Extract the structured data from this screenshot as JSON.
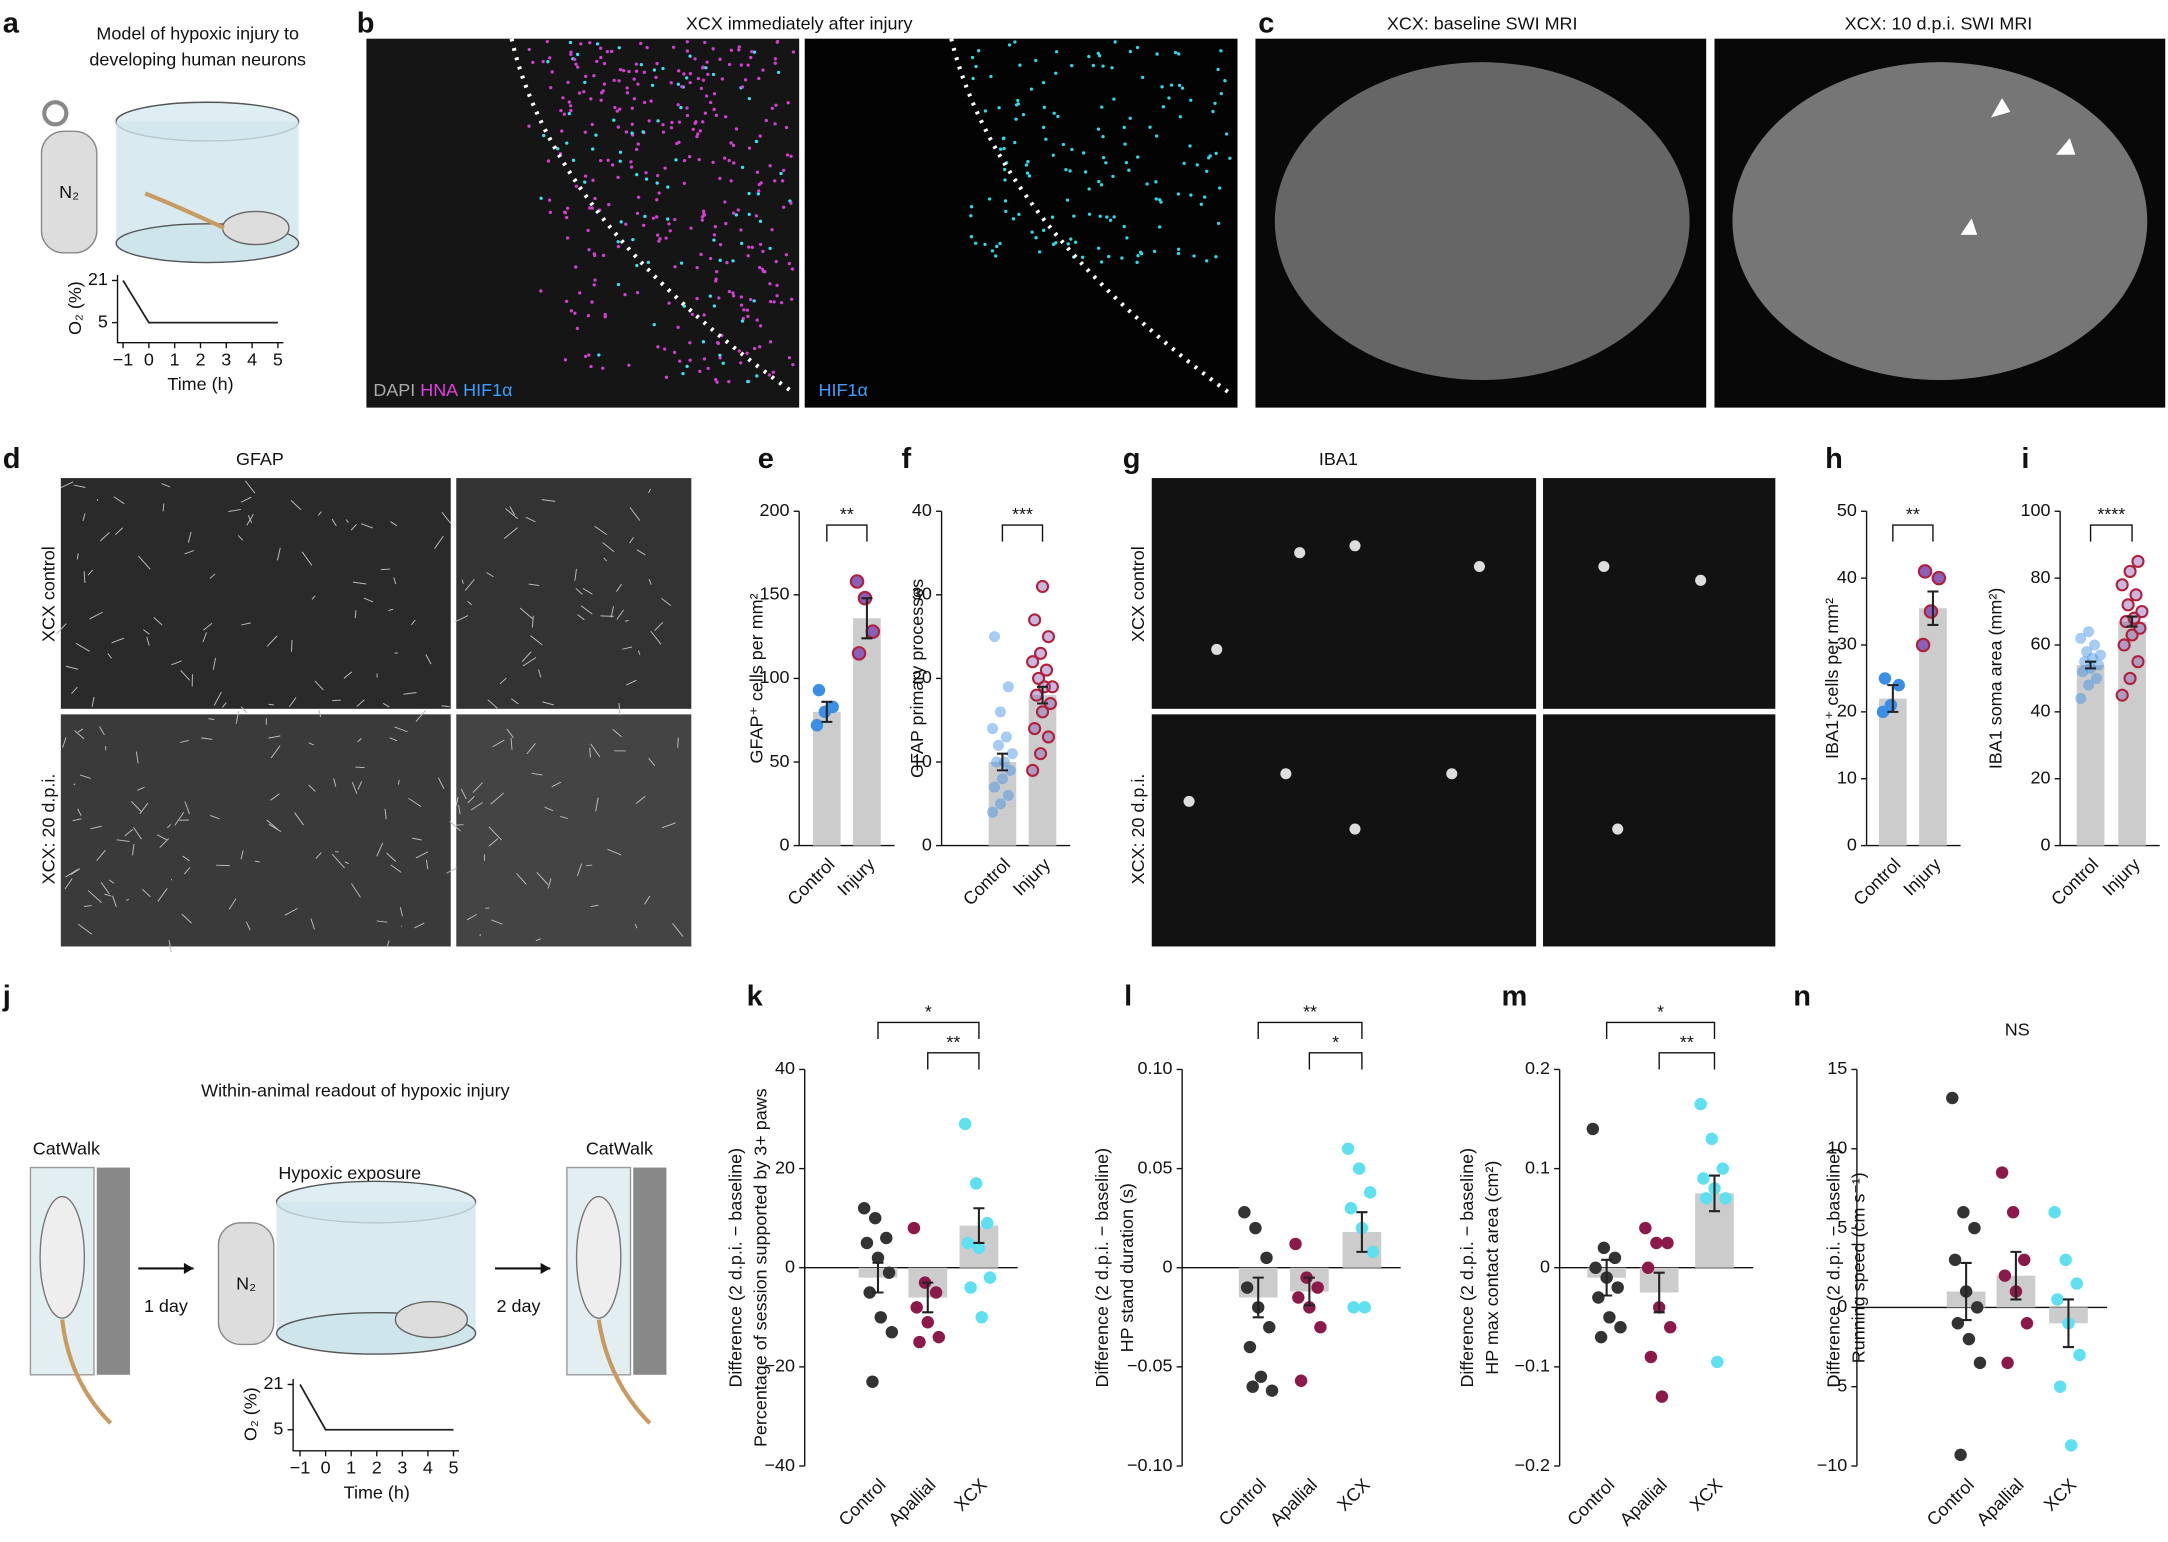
{
  "panel_a": {
    "letter": "a",
    "title": [
      "Model of hypoxic injury to",
      "developing human neurons"
    ],
    "gas": "N₂"
  },
  "panel_b": {
    "letter": "b",
    "title": "XCX immediately after injury",
    "stains": [
      "DAPI",
      "HNA",
      "HIF1α"
    ],
    "right_stain": "HIF1α"
  },
  "panel_c": {
    "letter": "c",
    "titles": [
      "XCX: baseline SWI MRI",
      "XCX: 10 d.p.i.  SWI MRI"
    ]
  },
  "panel_d": {
    "letter": "d",
    "title": "GFAP",
    "rows": [
      "XCX control",
      "XCX: 20 d.p.i."
    ]
  },
  "panel_g": {
    "letter": "g",
    "title": "IBA1",
    "rows": [
      "XCX control",
      "XCX: 20 d.p.i."
    ]
  },
  "panel_j": {
    "letter": "j",
    "title": "Within-animal readout of hypoxic injury",
    "before": "CatWalk",
    "exposure": "Hypoxic exposure",
    "after": "CatWalk",
    "gap1": "1 day",
    "gap2": "2 day",
    "gas": "N₂"
  },
  "chart_data": [
    {
      "type": "line",
      "x": [
        -1,
        0,
        5
      ],
      "values": [
        21,
        5,
        5
      ],
      "xlim": [
        -1,
        5
      ],
      "xticks": [
        {
          "value": -1,
          "label": "−1"
        },
        0,
        1,
        2,
        3,
        4,
        5
      ],
      "ylim": [
        0,
        21
      ],
      "yticks": [
        5,
        21
      ],
      "xlabel": "Time (h)",
      "ylabel": "O₂ (%)",
      "color": "#222222"
    },
    {
      "type": "bar",
      "label": "e",
      "categories": [
        "Control",
        "Injury"
      ],
      "values": [
        80,
        136
      ],
      "errors": [
        6,
        12
      ],
      "points": [
        [
          72,
          80,
          83,
          93
        ],
        [
          158,
          148,
          128,
          115
        ]
      ],
      "colors": [
        "#3a8ee6",
        "#8a5fb8"
      ],
      "bar_color": "#cccccc",
      "ylim": [
        0,
        200
      ],
      "yticks": [
        0,
        50,
        100,
        150,
        200
      ],
      "ylabel": [
        "GFAP⁺ cells per mm²"
      ],
      "annotations": [
        {
          "pair": [
            "Control",
            "Injury"
          ],
          "label": "**"
        }
      ]
    },
    {
      "type": "bar",
      "label": "f",
      "categories": [
        "Control",
        "Injury"
      ],
      "values": [
        10,
        18
      ],
      "errors": [
        1,
        1
      ],
      "points": [
        [
          4,
          5,
          6,
          7,
          8,
          9,
          10,
          10,
          11,
          12,
          13,
          14,
          16,
          19,
          25
        ],
        [
          9,
          11,
          13,
          14,
          16,
          17,
          18,
          19,
          19,
          20,
          21,
          22,
          23,
          25,
          27,
          31
        ]
      ],
      "colors": [
        "#3a8ee6",
        "#8a5fb8"
      ],
      "bar_color": "#cccccc",
      "ylim": [
        0,
        40
      ],
      "yticks": [
        0,
        10,
        20,
        30,
        40
      ],
      "ylabel": [
        "GFAP primary processes"
      ],
      "annotations": [
        {
          "pair": [
            "Control",
            "Injury"
          ],
          "label": "***"
        }
      ]
    },
    {
      "type": "bar",
      "label": "h",
      "categories": [
        "Control",
        "Injury"
      ],
      "values": [
        22,
        35.5
      ],
      "errors": [
        2,
        2.5
      ],
      "points": [
        [
          20,
          21,
          24,
          25
        ],
        [
          30,
          35,
          40,
          41
        ]
      ],
      "colors": [
        "#3a8ee6",
        "#8a5fb8"
      ],
      "bar_color": "#cccccc",
      "ylim": [
        0,
        50
      ],
      "yticks": [
        0,
        10,
        20,
        30,
        40,
        50
      ],
      "ylabel": [
        "IBA1⁺ cells per mm²"
      ],
      "annotations": [
        {
          "pair": [
            "Control",
            "Injury"
          ],
          "label": "**"
        }
      ]
    },
    {
      "type": "bar",
      "label": "i",
      "categories": [
        "Control",
        "Injury"
      ],
      "values": [
        54,
        67
      ],
      "errors": [
        1,
        1.5
      ],
      "points": [
        [
          44,
          48,
          50,
          52,
          53,
          54,
          55,
          56,
          57,
          58,
          60,
          62,
          64
        ],
        [
          45,
          50,
          55,
          60,
          63,
          65,
          67,
          68,
          70,
          72,
          75,
          78,
          82,
          85
        ]
      ],
      "colors": [
        "#3a8ee6",
        "#8a5fb8"
      ],
      "bar_color": "#cccccc",
      "ylim": [
        0,
        100
      ],
      "yticks": [
        0,
        20,
        40,
        60,
        80,
        100
      ],
      "ylabel": [
        "IBA1 soma area (mm²)"
      ],
      "annotations": [
        {
          "pair": [
            "Control",
            "Injury"
          ],
          "label": "****"
        }
      ]
    },
    {
      "type": "bar",
      "label": "k",
      "categories": [
        "Control",
        "Apallial",
        "XCX"
      ],
      "values": [
        -2,
        -6,
        8.5
      ],
      "errors": [
        3,
        3,
        3.5
      ],
      "points": [
        [
          12,
          10,
          6,
          5,
          2,
          -1,
          -5,
          -10,
          -13,
          -23
        ],
        [
          8,
          -3,
          -5,
          -8,
          -11,
          -14,
          -15
        ],
        [
          29,
          17,
          9,
          5,
          4,
          -2,
          -4,
          -10
        ]
      ],
      "colors": [
        "#333333",
        "#8b1a4a",
        "#5ee0f0"
      ],
      "bar_color": "#cccccc",
      "ylim": [
        -40,
        40
      ],
      "yticks": [
        {
          "value": -40,
          "label": "−40"
        },
        {
          "value": -20,
          "label": "−20"
        },
        0,
        20,
        40
      ],
      "ylabel": [
        "Difference (2 d.p.i. − baseline)",
        "Percentage of session supported by 3+ paws"
      ],
      "annotations": [
        {
          "pair": [
            "Control",
            "XCX"
          ],
          "label": "*"
        },
        {
          "pair": [
            "Apallial",
            "XCX"
          ],
          "label": "**"
        }
      ]
    },
    {
      "type": "bar",
      "label": "l",
      "categories": [
        "Control",
        "Apallial",
        "XCX"
      ],
      "values": [
        -0.015,
        -0.012,
        0.018
      ],
      "errors": [
        0.01,
        0.007,
        0.01
      ],
      "points": [
        [
          0.028,
          0.02,
          0.005,
          -0.01,
          -0.02,
          -0.03,
          -0.04,
          -0.055,
          -0.062,
          -0.06
        ],
        [
          0.012,
          -0.005,
          -0.01,
          -0.015,
          -0.02,
          -0.03,
          -0.057
        ],
        [
          0.06,
          0.05,
          0.038,
          0.03,
          0.02,
          0.008,
          -0.02,
          -0.02
        ]
      ],
      "colors": [
        "#333333",
        "#8b1a4a",
        "#5ee0f0"
      ],
      "bar_color": "#cccccc",
      "ylim": [
        -0.1,
        0.1
      ],
      "yticks": [
        {
          "value": -0.1,
          "label": "−0.10"
        },
        {
          "value": -0.05,
          "label": "−0.05"
        },
        0,
        0.05,
        {
          "value": 0.1,
          "label": "0.10"
        }
      ],
      "ylabel": [
        "Difference (2 d.p.i. − baseline)",
        "HP stand duration (s)"
      ],
      "annotations": [
        {
          "pair": [
            "Control",
            "XCX"
          ],
          "label": "**"
        },
        {
          "pair": [
            "Apallial",
            "XCX"
          ],
          "label": "*"
        }
      ]
    },
    {
      "type": "bar",
      "label": "m",
      "categories": [
        "Control",
        "Apallial",
        "XCX"
      ],
      "values": [
        -0.01,
        -0.025,
        0.075
      ],
      "errors": [
        0.018,
        0.02,
        0.018
      ],
      "points": [
        [
          0.14,
          0.02,
          0.01,
          0,
          -0.01,
          -0.02,
          -0.03,
          -0.05,
          -0.06,
          -0.07
        ],
        [
          0.04,
          0.025,
          0.025,
          0,
          -0.04,
          -0.06,
          -0.09,
          -0.13
        ],
        [
          0.165,
          0.13,
          0.1,
          0.09,
          0.08,
          0.07,
          0.07,
          -0.095
        ]
      ],
      "colors": [
        "#333333",
        "#8b1a4a",
        "#5ee0f0"
      ],
      "bar_color": "#cccccc",
      "ylim": [
        -0.2,
        0.2
      ],
      "yticks": [
        {
          "value": -0.2,
          "label": "−0.2"
        },
        {
          "value": -0.1,
          "label": "−0.1"
        },
        0,
        0.1,
        0.2
      ],
      "ylabel": [
        "Difference (2 d.p.i. − baseline)",
        "HP max contact area (cm²)"
      ],
      "annotations": [
        {
          "pair": [
            "Control",
            "XCX"
          ],
          "label": "*"
        },
        {
          "pair": [
            "Apallial",
            "XCX"
          ],
          "label": "**"
        }
      ]
    },
    {
      "type": "bar",
      "label": "n",
      "categories": [
        "Control",
        "Apallial",
        "XCX"
      ],
      "values": [
        1,
        2,
        -1
      ],
      "errors": [
        1.8,
        1.5,
        1.5
      ],
      "points": [
        [
          13.2,
          6,
          5,
          3,
          1,
          0,
          -1,
          -2,
          -3.5,
          -9.3
        ],
        [
          8.5,
          6,
          3,
          2,
          1,
          -1,
          -3.5
        ],
        [
          6,
          3,
          1.5,
          0.5,
          -1,
          -3,
          -5,
          -8.7
        ]
      ],
      "colors": [
        "#333333",
        "#8b1a4a",
        "#5ee0f0"
      ],
      "bar_color": "#cccccc",
      "ylim": [
        -10,
        15
      ],
      "yticks": [
        {
          "value": -10,
          "label": "−10"
        },
        {
          "value": -5,
          "label": "−5"
        },
        0,
        5,
        10,
        15
      ],
      "ylabel": [
        "Difference (2 d.p.i. − baseline)",
        "Running speed (cm s⁻¹)"
      ],
      "note": "NS"
    },
    {
      "type": "line",
      "x": [
        -1,
        0,
        5
      ],
      "values": [
        21,
        5,
        5
      ],
      "xlim": [
        -1,
        5
      ],
      "xticks": [
        {
          "value": -1,
          "label": "−1"
        },
        0,
        1,
        2,
        3,
        4,
        5
      ],
      "ylim": [
        0,
        21
      ],
      "yticks": [
        5,
        21
      ],
      "xlabel": "Time (h)",
      "ylabel": "O₂ (%)",
      "color": "#222222"
    }
  ]
}
